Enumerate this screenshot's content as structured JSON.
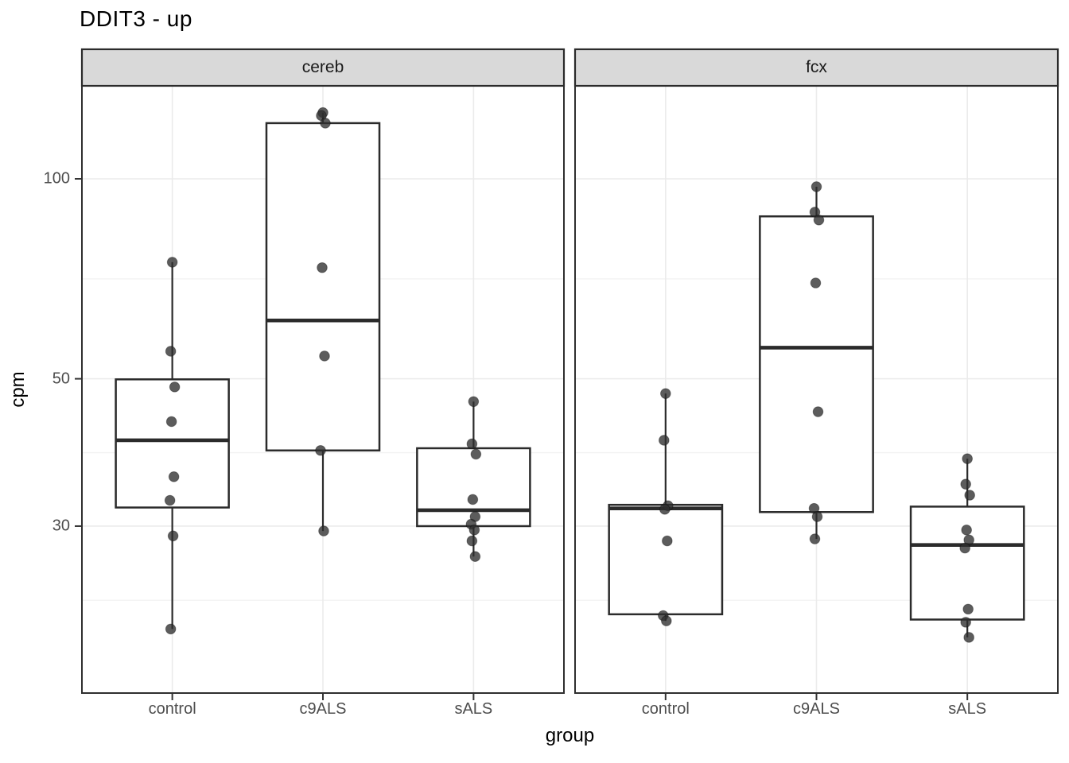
{
  "chart_data": {
    "type": "boxplot",
    "title": "DDIT3 - up",
    "xlabel": "group",
    "ylabel": "cpm",
    "y_scale": "log10",
    "y_breaks": [
      100,
      50,
      30
    ],
    "y_tick_labels": [
      "100",
      "50",
      "30"
    ],
    "y_minor_breaks": [
      141.4,
      70.7,
      38.7,
      23.2
    ],
    "y_range_approx": [
      16.8,
      138
    ],
    "x_categories": [
      "control",
      "c9ALS",
      "sALS"
    ],
    "legend": "none",
    "grid": true,
    "facets": [
      {
        "name": "cereb",
        "groups": [
          {
            "label": "control",
            "q1": 32.0,
            "median": 40.4,
            "q3": 49.9,
            "whisker_low": 21.0,
            "whisker_high": 74.9,
            "points": [
              74.9,
              55.0,
              48.6,
              43.1,
              35.6,
              32.8,
              29.0,
              21.0
            ]
          },
          {
            "label": "c9ALS",
            "q1": 39.0,
            "median": 61.2,
            "q3": 121.3,
            "whisker_low": 29.5,
            "whisker_high": 125.8,
            "points": [
              125.8,
              124.5,
              121.3,
              73.5,
              54.1,
              39.0,
              29.5
            ]
          },
          {
            "label": "sALS",
            "q1": 30.0,
            "median": 31.7,
            "q3": 39.3,
            "whisker_low": 27.0,
            "whisker_high": 46.2,
            "points": [
              46.2,
              39.9,
              38.5,
              32.9,
              31.0,
              30.2,
              29.6,
              28.5,
              27.0
            ]
          }
        ]
      },
      {
        "name": "fcx",
        "groups": [
          {
            "label": "control",
            "q1": 22.1,
            "median": 31.9,
            "q3": 32.3,
            "whisker_low": 21.6,
            "whisker_high": 47.5,
            "points": [
              47.5,
              40.4,
              32.2,
              31.8,
              28.5,
              22.0,
              21.6
            ]
          },
          {
            "label": "c9ALS",
            "q1": 31.5,
            "median": 55.7,
            "q3": 87.8,
            "whisker_low": 28.7,
            "whisker_high": 97.3,
            "points": [
              97.3,
              89.1,
              86.7,
              69.7,
              44.6,
              31.9,
              31.0,
              28.7
            ]
          },
          {
            "label": "sALS",
            "q1": 21.7,
            "median": 28.1,
            "q3": 32.1,
            "whisker_low": 20.4,
            "whisker_high": 37.9,
            "points": [
              37.9,
              34.7,
              33.4,
              29.6,
              28.6,
              27.8,
              22.5,
              21.5,
              20.4
            ]
          }
        ]
      }
    ]
  },
  "colors": {
    "panel_bg": "#ffffff",
    "strip_bg": "#d9d9d9",
    "strip_border": "#2b2b2b",
    "panel_border": "#2f2f2f",
    "grid_major": "#ebebeb",
    "grid_minor": "#f2f2f2",
    "box_stroke": "#2b2b2b",
    "box_fill": "#ffffff",
    "point_color": "#2e2e2e",
    "tick_color": "#333333",
    "tick_label_color": "#4d4d4d"
  }
}
